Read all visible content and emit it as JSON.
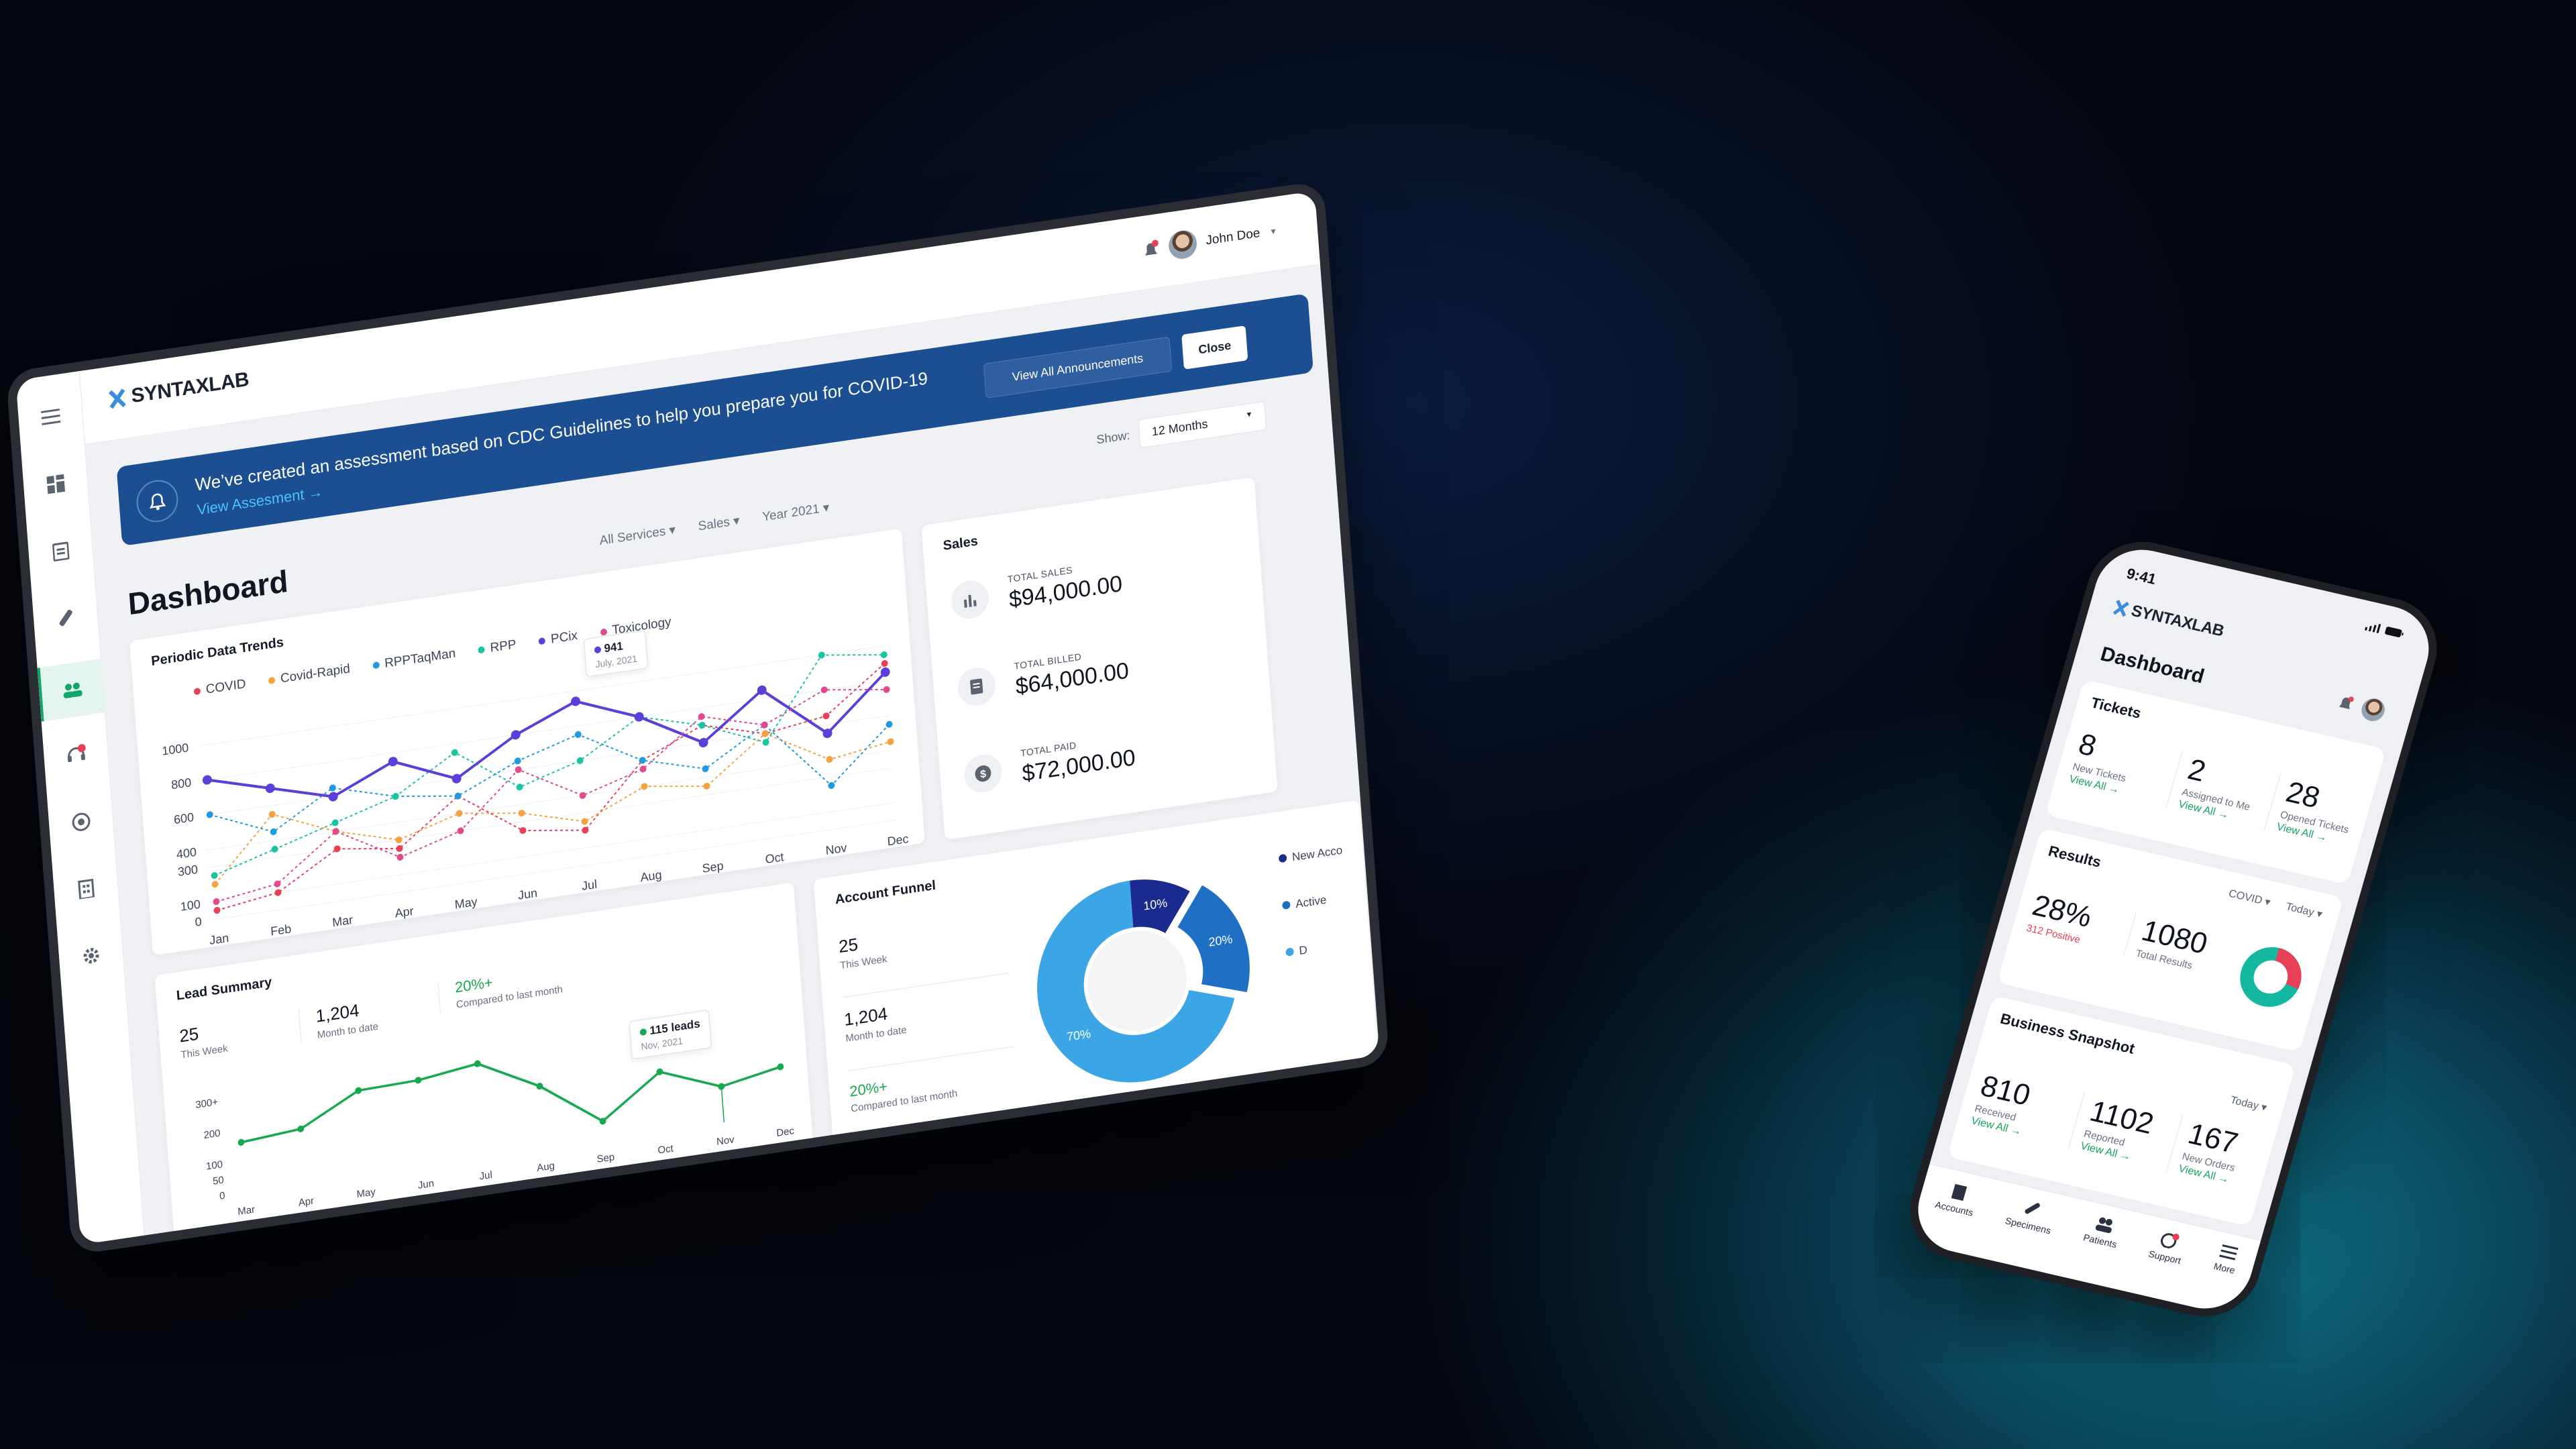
{
  "app": {
    "brand": "SYNTAXLAB",
    "user": "John Doe"
  },
  "banner": {
    "message": "We’ve created an assessment based on CDC Guidelines to help you prepare you for COVID-19",
    "link": "View Assesment →",
    "view_all": "View All Announcements",
    "close": "Close"
  },
  "show": {
    "label": "Show:",
    "value": "12 Months"
  },
  "page_title": "Dashboard",
  "filters": {
    "services": "All Services",
    "sales": "Sales",
    "year": "Year 2021"
  },
  "periodic": {
    "title": "Periodic Data Trends",
    "tooltip_value": "941",
    "tooltip_date": "July, 2021"
  },
  "chart_data": [
    {
      "type": "line",
      "title": "Periodic Data Trends",
      "categories": [
        "Jan",
        "Feb",
        "Mar",
        "Apr",
        "May",
        "Jun",
        "Jul",
        "Aug",
        "Sep",
        "Oct",
        "Nov",
        "Dec"
      ],
      "yticks": [
        "0",
        "100",
        "300",
        "400",
        "600",
        "800",
        "1000"
      ],
      "ylim": [
        0,
        1000
      ],
      "series": [
        {
          "name": "COVID",
          "color": "#e84057",
          "values": [
            50,
            100,
            300,
            250,
            500,
            250,
            200,
            550,
            700,
            600,
            650,
            900
          ]
        },
        {
          "name": "Covid-Rapid",
          "color": "#f5a340",
          "values": [
            200,
            550,
            400,
            300,
            400,
            350,
            250,
            400,
            350,
            600,
            400,
            450
          ]
        },
        {
          "name": "RPPTaqMan",
          "color": "#1e9be0",
          "values": [
            600,
            450,
            650,
            550,
            500,
            650,
            750,
            550,
            450,
            650,
            250,
            550
          ]
        },
        {
          "name": "RPP",
          "color": "#19c4a2",
          "values": [
            250,
            350,
            450,
            550,
            750,
            500,
            600,
            800,
            700,
            550,
            1000,
            950
          ]
        },
        {
          "name": "PCix",
          "color": "#5b3fd8",
          "values": [
            800,
            700,
            600,
            750,
            600,
            800,
            941,
            800,
            600,
            850,
            550,
            850
          ]
        },
        {
          "name": "Toxicology",
          "color": "#e34a8e",
          "values": [
            100,
            150,
            400,
            200,
            300,
            600,
            400,
            500,
            750,
            650,
            800,
            750
          ]
        }
      ]
    },
    {
      "type": "line",
      "title": "Lead Summary",
      "categories": [
        "Mar",
        "Apr",
        "May",
        "Jun",
        "Jul",
        "Aug",
        "Sep",
        "Oct",
        "Nov",
        "Dec"
      ],
      "yticks": [
        "0",
        "50",
        "100",
        "200",
        "300+"
      ],
      "ylim": [
        0,
        300
      ],
      "series": [
        {
          "name": "",
          "color": "#17a94f",
          "values": [
            160,
            175,
            270,
            275,
            300,
            200,
            60,
            190,
            115,
            150
          ]
        }
      ]
    },
    {
      "type": "pie",
      "title": "Account Funnel",
      "series": [
        {
          "name": "",
          "values": [
            10,
            20,
            70
          ]
        }
      ],
      "labels": [
        "10%",
        "20%",
        "70%"
      ],
      "legend": [
        "New Acco",
        "Active",
        "D"
      ]
    }
  ],
  "sales": {
    "title": "Sales",
    "items": [
      {
        "label": "TOTAL SALES",
        "value": "$94,000.00"
      },
      {
        "label": "TOTAL BILLED",
        "value": "$64,000.00"
      },
      {
        "label": "TOTAL PAID",
        "value": "$72,000.00"
      }
    ]
  },
  "lead": {
    "title": "Lead Summary",
    "week_num": "25",
    "week_lab": "This Week",
    "month_num": "1,204",
    "month_lab": "Month to date",
    "cmp_num": "20%+",
    "cmp_lab": "Compared to last month",
    "tip_value": "115 leads",
    "tip_date": "Nov, 2021"
  },
  "funnel": {
    "title": "Account Funnel",
    "week_num": "25",
    "week_lab": "This Week",
    "month_num": "1,204",
    "month_lab": "Month to date",
    "cmp_num": "20%+",
    "cmp_lab": "Compared to last month"
  },
  "phone": {
    "time": "9:41",
    "brand": "SYNTAXLAB",
    "title": "Dashboard",
    "tickets": {
      "title": "Tickets",
      "items": [
        {
          "num": "8",
          "label": "New Tickets",
          "link": "View All →"
        },
        {
          "num": "2",
          "label": "Assigned to Me",
          "link": "View All →"
        },
        {
          "num": "28",
          "label": "Opened Tickets",
          "link": "View All →"
        }
      ]
    },
    "results": {
      "title": "Results",
      "filter1": "COVID",
      "filter2": "Today",
      "pct": "28%",
      "positive": "312 Positive",
      "total": "1080",
      "total_lab": "Total Results"
    },
    "snapshot": {
      "title": "Business Snapshot",
      "filter": "Today",
      "items": [
        {
          "num": "810",
          "label": "Received",
          "link": "View All →"
        },
        {
          "num": "1102",
          "label": "Reported",
          "link": "View All →"
        },
        {
          "num": "167",
          "label": "New Orders",
          "link": "View All →"
        }
      ]
    },
    "tabs": [
      "Accounts",
      "Specimens",
      "Patients",
      "Support",
      "More"
    ]
  },
  "colors": {
    "brand_blue": "#1c4f92",
    "accent_green": "#17a94f",
    "donut_dark": "#1b2a8f",
    "donut_mid": "#1f6fc5",
    "donut_light": "#3ba5e6"
  }
}
